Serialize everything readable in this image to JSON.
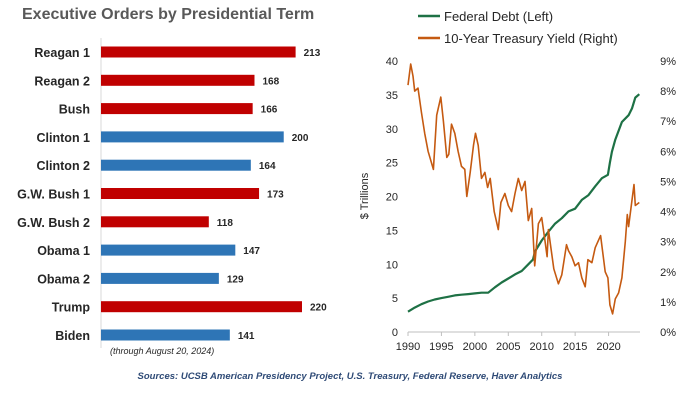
{
  "left_title": "Executive Orders by Presidential Term",
  "left_note": "(through August 20, 2024)",
  "source": "Sources: UCSB American Presidency Project, U.S. Treasury, Federal Reserve, Haver Analytics",
  "colors": {
    "red": "#c00000",
    "blue": "#2e75b6",
    "green": "#1e7145",
    "orange": "#c55a11"
  },
  "chart_data": [
    {
      "type": "bar",
      "orientation": "horizontal",
      "title": "Executive Orders by Presidential Term",
      "categories": [
        "Reagan 1",
        "Reagan 2",
        "Bush",
        "Clinton 1",
        "Clinton 2",
        "G.W. Bush 1",
        "G.W. Bush 2",
        "Obama 1",
        "Obama 2",
        "Trump",
        "Biden"
      ],
      "values": [
        213,
        168,
        166,
        200,
        164,
        173,
        118,
        147,
        129,
        220,
        141
      ],
      "party": [
        "R",
        "R",
        "R",
        "D",
        "D",
        "R",
        "R",
        "D",
        "D",
        "R",
        "D"
      ],
      "value_labels": [
        "213",
        "168",
        "166",
        "200",
        "164",
        "173",
        "118",
        "147",
        "129",
        "220",
        "141"
      ],
      "xlim": [
        0,
        240
      ]
    },
    {
      "type": "line",
      "title": "",
      "x_ticks": [
        "1990",
        "1995",
        "2000",
        "2005",
        "2010",
        "2015",
        "2020"
      ],
      "xlim": [
        1990,
        2024.7
      ],
      "left_axis": {
        "label": "$ Trillions",
        "ylim": [
          0,
          40
        ],
        "ticks": [
          "0",
          "5",
          "10",
          "15",
          "20",
          "25",
          "30",
          "35",
          "40"
        ]
      },
      "right_axis": {
        "label": "",
        "ylim": [
          0,
          9
        ],
        "ticks": [
          "0%",
          "1%",
          "2%",
          "3%",
          "4%",
          "5%",
          "6%",
          "7%",
          "8%",
          "9%"
        ]
      },
      "legend": [
        "Federal Debt (Left)",
        "10-Year Treasury Yield (Right)"
      ],
      "series": [
        {
          "name": "Federal Debt (Left)",
          "axis": "left",
          "x": [
            1990,
            1991,
            1992,
            1993,
            1994,
            1995,
            1996,
            1997,
            1998,
            1999,
            2000,
            2001,
            2002,
            2003,
            2004,
            2005,
            2006,
            2007,
            2008,
            2008.7,
            2009,
            2010,
            2011,
            2012,
            2013,
            2014,
            2015,
            2016,
            2017,
            2018,
            2019,
            2019.9,
            2020.2,
            2020.5,
            2021,
            2022,
            2023,
            2023.5,
            2024,
            2024.6
          ],
          "y": [
            3.0,
            3.6,
            4.1,
            4.5,
            4.8,
            5.0,
            5.2,
            5.4,
            5.5,
            5.6,
            5.7,
            5.8,
            5.8,
            6.6,
            7.3,
            7.9,
            8.5,
            9.0,
            10.0,
            10.7,
            11.9,
            13.5,
            14.8,
            16.0,
            16.8,
            17.8,
            18.2,
            19.5,
            20.2,
            21.5,
            22.7,
            23.2,
            25.0,
            26.6,
            28.4,
            31.0,
            32.0,
            33.0,
            34.6,
            35.1
          ]
        },
        {
          "name": "10-Year Treasury Yield (Right)",
          "axis": "right",
          "x": [
            1990,
            1990.4,
            1990.75,
            1991,
            1991.5,
            1992,
            1992.5,
            1993,
            1993.8,
            1994.3,
            1994.9,
            1995.3,
            1995.8,
            1996.1,
            1996.5,
            1997,
            1997.5,
            1998,
            1998.5,
            1998.8,
            1999.3,
            1999.8,
            2000.1,
            2000.5,
            2001,
            2001.5,
            2001.9,
            2002.3,
            2002.9,
            2003.5,
            2003.9,
            2004.5,
            2005,
            2005.5,
            2006,
            2006.5,
            2007,
            2007.5,
            2008,
            2008.5,
            2008.95,
            2009.5,
            2010,
            2010.5,
            2010.8,
            2011,
            2011.8,
            2012.5,
            2013,
            2013.7,
            2014,
            2014.5,
            2015,
            2015.5,
            2016,
            2016.5,
            2016.9,
            2017.5,
            2018,
            2018.8,
            2019.5,
            2019.9,
            2020.2,
            2020.6,
            2021,
            2021.5,
            2022,
            2022.5,
            2022.8,
            2023,
            2023.8,
            2024,
            2024.6
          ],
          "y": [
            8.2,
            8.9,
            8.5,
            8.0,
            8.1,
            7.3,
            6.6,
            6.0,
            5.4,
            7.2,
            7.8,
            7.0,
            5.8,
            5.9,
            6.9,
            6.6,
            6.0,
            5.5,
            5.4,
            4.5,
            5.3,
            6.2,
            6.6,
            6.2,
            5.1,
            5.3,
            4.8,
            5.1,
            4.0,
            3.4,
            4.3,
            4.6,
            4.2,
            4.0,
            4.6,
            5.1,
            4.7,
            5.0,
            3.7,
            4.1,
            2.2,
            3.6,
            3.8,
            3.0,
            2.5,
            3.4,
            2.1,
            1.6,
            1.9,
            2.9,
            2.7,
            2.5,
            2.2,
            2.3,
            1.8,
            1.5,
            2.4,
            2.3,
            2.8,
            3.2,
            2.0,
            1.8,
            0.9,
            0.6,
            1.1,
            1.3,
            1.8,
            3.0,
            3.9,
            3.5,
            4.9,
            4.2,
            4.3
          ]
        }
      ]
    }
  ]
}
